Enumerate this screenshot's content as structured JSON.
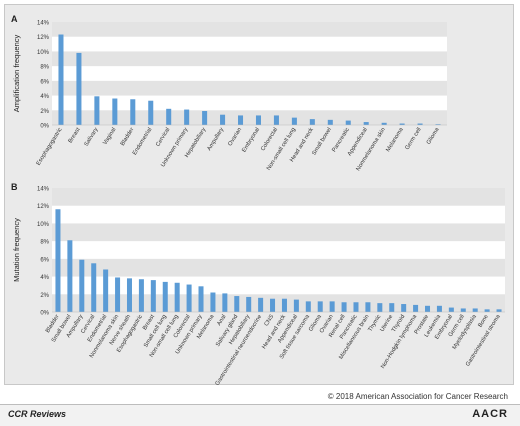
{
  "chart_data": [
    {
      "type": "bar",
      "panel_label": "A",
      "ylabel": "Amplification frequency",
      "ylim": [
        0,
        14
      ],
      "yticks": [
        "0%",
        "2%",
        "4%",
        "6%",
        "8%",
        "10%",
        "12%",
        "14%"
      ],
      "categories": [
        "Esophagogastric",
        "Breast",
        "Salivary",
        "Vaginal",
        "Bladder",
        "Endometrial",
        "Cervical",
        "Unknown primary",
        "Hepatobiliary",
        "Ampullary",
        "Ovarian",
        "Embryonal",
        "Colorectal",
        "Non-small cell lung",
        "Head and neck",
        "Small bowel",
        "Pancreatic",
        "Appendiceal",
        "Nonmelanoma skin",
        "Melanoma",
        "Germ cell",
        "Glioma"
      ],
      "values": [
        12.3,
        9.8,
        3.9,
        3.6,
        3.5,
        3.3,
        2.2,
        2.1,
        1.9,
        1.4,
        1.3,
        1.3,
        1.3,
        1.0,
        0.8,
        0.7,
        0.6,
        0.4,
        0.3,
        0.2,
        0.2,
        0.1
      ],
      "bar_color": "#5b9bd5"
    },
    {
      "type": "bar",
      "panel_label": "B",
      "ylabel": "Mutation frequency",
      "ylim": [
        0,
        14
      ],
      "yticks": [
        "0%",
        "2%",
        "4%",
        "6%",
        "8%",
        "10%",
        "12%",
        "14%"
      ],
      "categories": [
        "Bladder",
        "Small bowel",
        "Ampullary",
        "Cervical",
        "Endometrial",
        "Nonmelanoma skin",
        "Nerve sheath",
        "Esophagogastric",
        "Breast",
        "Small cell lung",
        "Non-small cell lung",
        "Colorectal",
        "Unknown primary",
        "Melanoma",
        "Anal",
        "Salivary gland",
        "Hepatobiliary",
        "Gastrointestinal neuroendocrine",
        "CNS",
        "Head and neck",
        "Appendiceal",
        "Soft tissue sarcoma",
        "Glioma",
        "Ovarian",
        "Renal cell",
        "Pancreatic",
        "Miscellaneous brain",
        "Thymic",
        "Uterine",
        "Thyroid",
        "Non-Hodgkin lymphoma",
        "Prostate",
        "Leukemia",
        "Embryonal",
        "Germ cell",
        "Myelodysplasia",
        "Bone",
        "Gastrointestinal stroma"
      ],
      "values": [
        11.6,
        8.1,
        5.9,
        5.5,
        4.8,
        3.9,
        3.8,
        3.7,
        3.6,
        3.4,
        3.3,
        3.1,
        2.9,
        2.2,
        2.1,
        1.8,
        1.7,
        1.6,
        1.5,
        1.5,
        1.4,
        1.2,
        1.2,
        1.2,
        1.1,
        1.1,
        1.1,
        1.0,
        1.0,
        0.9,
        0.8,
        0.7,
        0.7,
        0.5,
        0.4,
        0.4,
        0.3,
        0.3
      ],
      "bar_color": "#5b9bd5"
    }
  ],
  "copyright": "© 2018 American Association for Cancer Research",
  "footer": {
    "left": "CCR Reviews",
    "right": "AACR"
  }
}
